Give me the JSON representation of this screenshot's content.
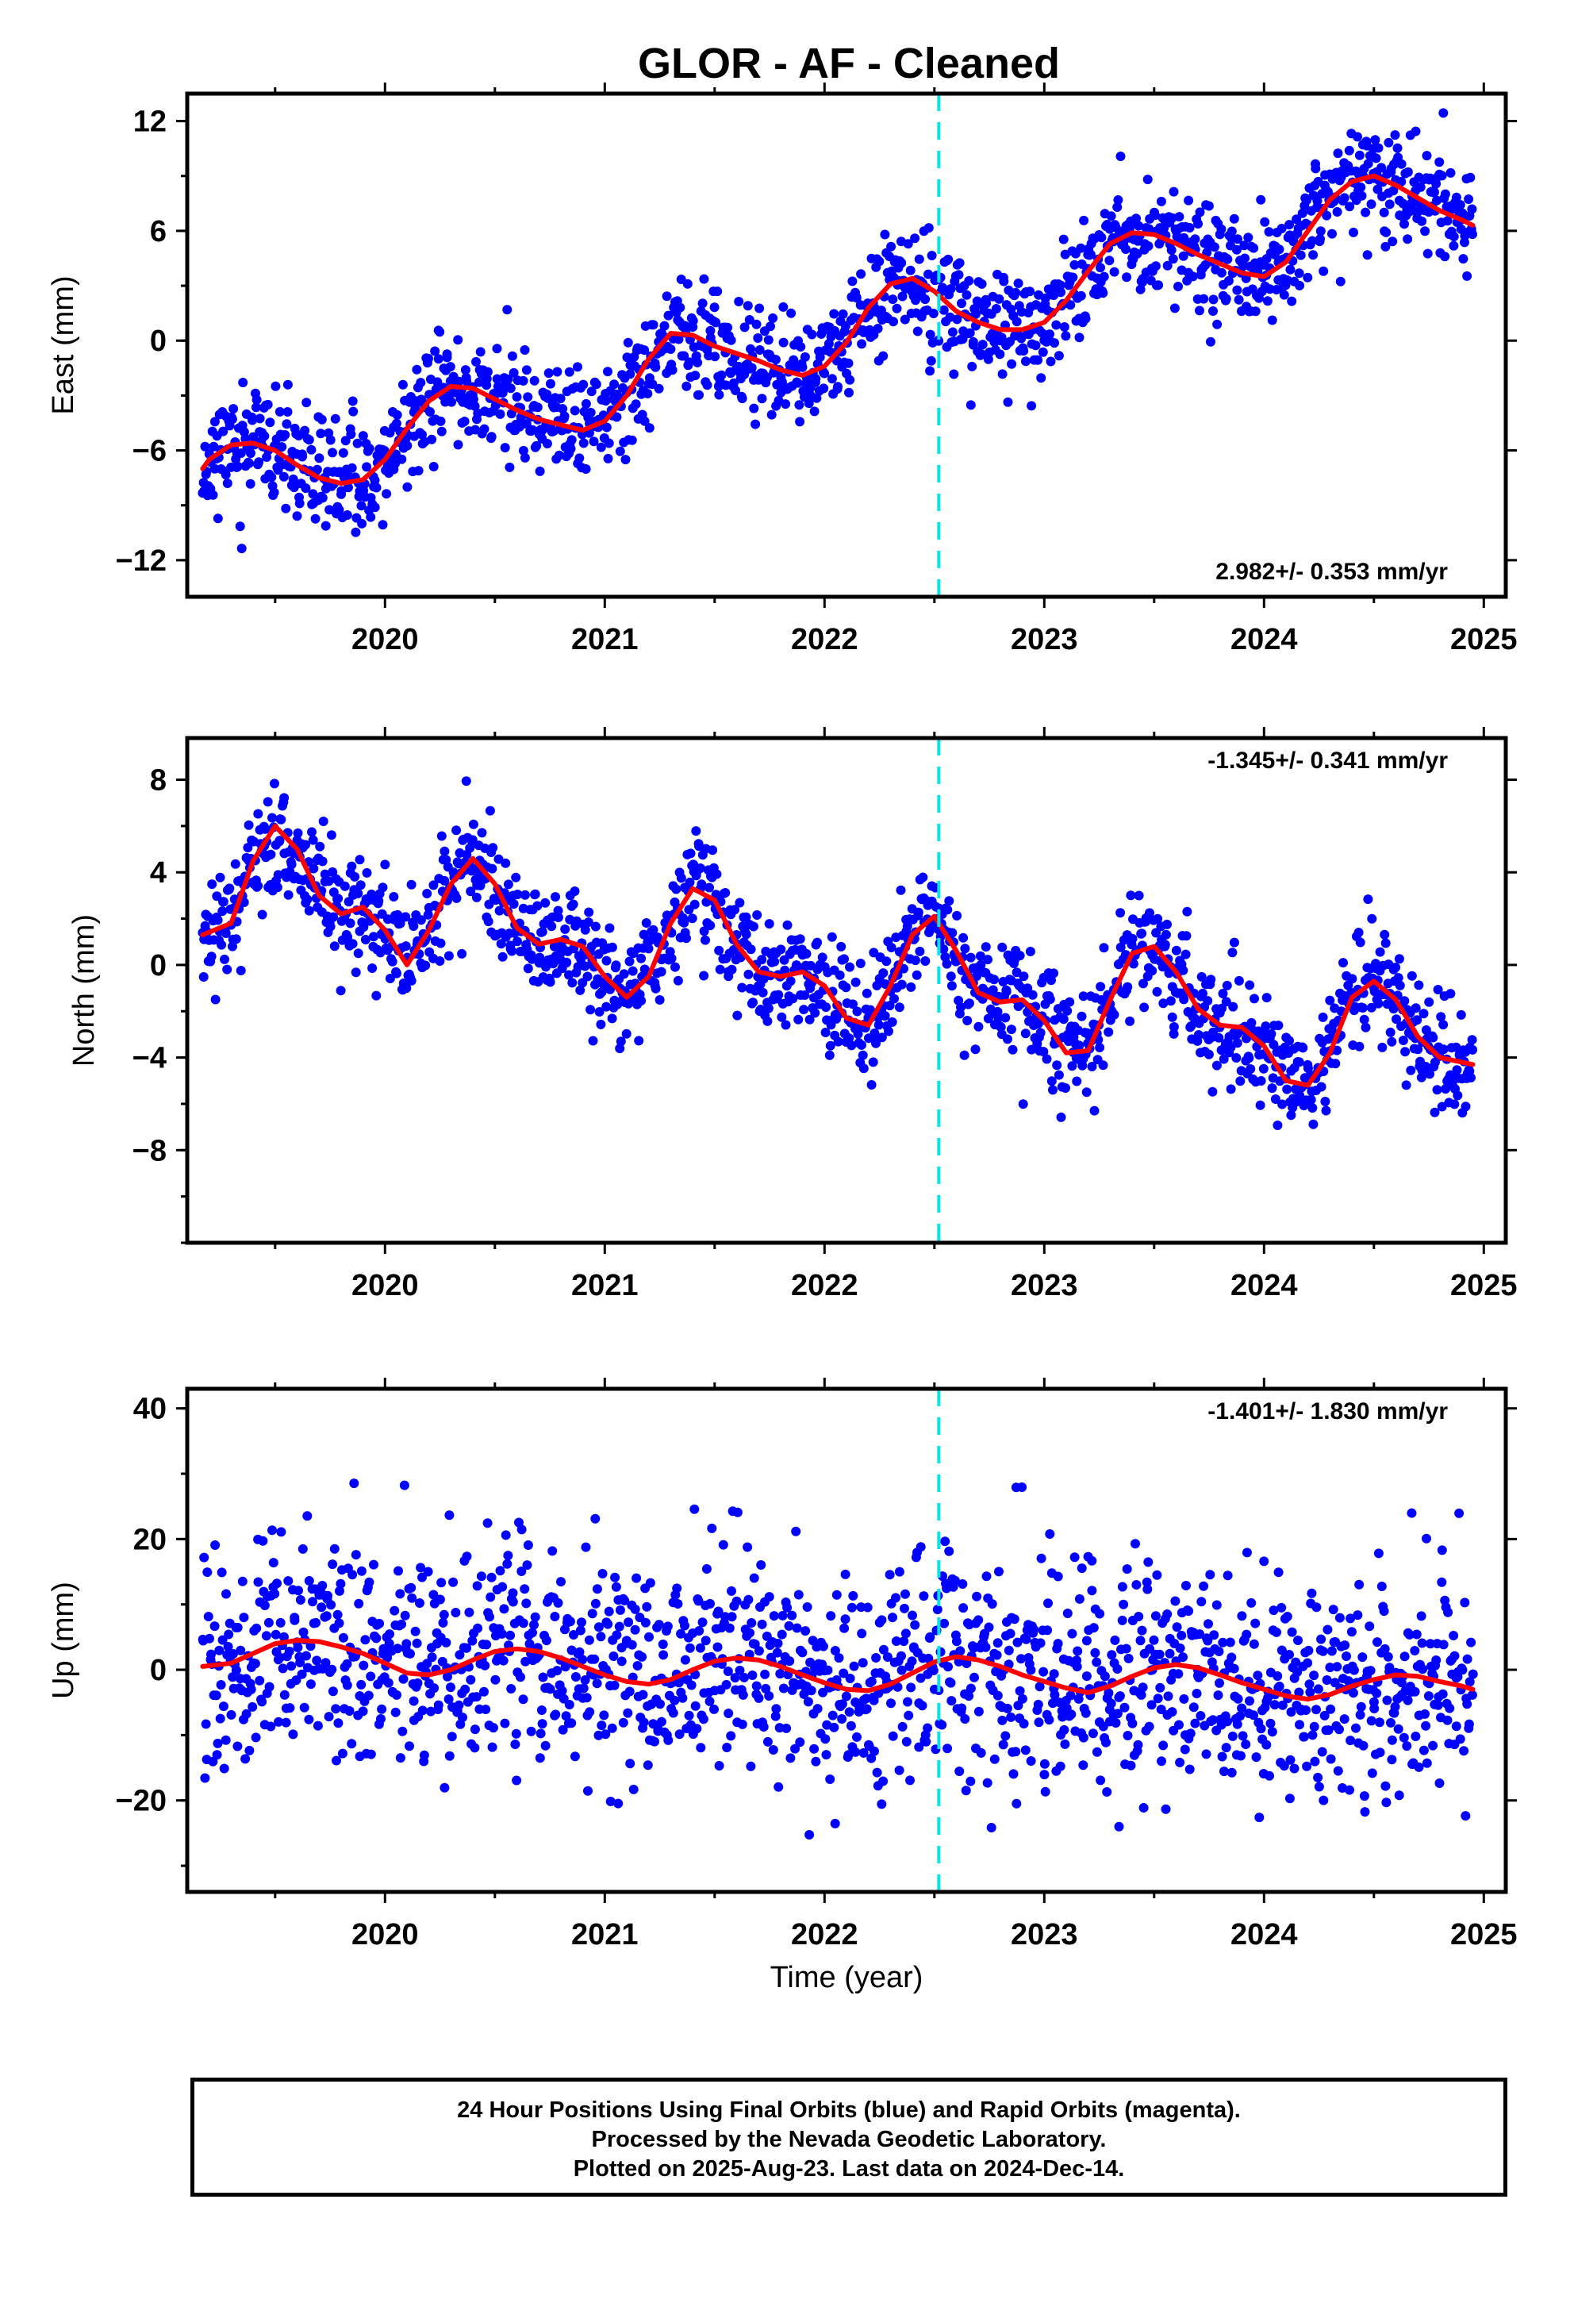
{
  "title": "GLOR  - AF - Cleaned",
  "colors": {
    "final_orbits": "#0000ff",
    "fit_line": "#ff0000",
    "event_line": "#00e5ee"
  },
  "chart_data": [
    {
      "type": "scatter",
      "id": "east",
      "ylabel": "East (mm)",
      "ylim": [
        -14,
        13.5
      ],
      "yticks": [
        12,
        6,
        0,
        -6,
        -12
      ],
      "ytick_labels": [
        "12",
        "6",
        "0",
        "-6",
        "-12"
      ],
      "xlim": [
        2019.1,
        2025.1
      ],
      "xticks": [
        2020,
        2021,
        2022,
        2023,
        2024,
        2025
      ],
      "xtick_labels": [
        "2020",
        "2021",
        "2022",
        "2023",
        "2024",
        "2025"
      ],
      "rate_label": "2.982+/- 0.353 mm/yr",
      "event_line_x": 2022.52,
      "fit": {
        "x": [
          2019.17,
          2019.2,
          2019.3,
          2019.4,
          2019.5,
          2019.6,
          2019.7,
          2019.8,
          2019.9,
          2020.0,
          2020.1,
          2020.2,
          2020.3,
          2020.4,
          2020.5,
          2020.6,
          2020.7,
          2020.8,
          2020.9,
          2021.0,
          2021.1,
          2021.2,
          2021.3,
          2021.4,
          2021.5,
          2021.6,
          2021.7,
          2021.8,
          2021.9,
          2022.0,
          2022.1,
          2022.2,
          2022.3,
          2022.4,
          2022.5,
          2022.6,
          2022.7,
          2022.8,
          2022.9,
          2023.0,
          2023.1,
          2023.2,
          2023.3,
          2023.4,
          2023.5,
          2023.6,
          2023.7,
          2023.8,
          2023.9,
          2024.0,
          2024.1,
          2024.2,
          2024.3,
          2024.4,
          2024.5,
          2024.6,
          2024.7,
          2024.8,
          2024.9,
          2024.95
        ],
        "y": [
          -7.0,
          -6.5,
          -5.7,
          -5.6,
          -6.0,
          -6.8,
          -7.5,
          -7.8,
          -7.6,
          -6.5,
          -4.8,
          -3.3,
          -2.5,
          -2.6,
          -3.2,
          -3.8,
          -4.3,
          -4.6,
          -4.9,
          -4.4,
          -3.0,
          -1.0,
          0.4,
          0.3,
          -0.3,
          -0.7,
          -1.1,
          -1.6,
          -1.9,
          -1.4,
          -0.1,
          1.8,
          3.1,
          3.4,
          2.7,
          1.6,
          1.0,
          0.6,
          0.6,
          1.0,
          2.2,
          3.8,
          5.3,
          5.9,
          5.8,
          5.3,
          4.7,
          4.2,
          3.7,
          3.5,
          4.3,
          6.0,
          7.7,
          8.7,
          9.0,
          8.5,
          7.8,
          7.1,
          6.6,
          6.3
        ]
      }
    },
    {
      "type": "scatter",
      "id": "north",
      "ylabel": "North (mm)",
      "ylim": [
        -12,
        9.8
      ],
      "yticks": [
        8,
        4,
        0,
        -4,
        -8
      ],
      "ytick_labels": [
        "8",
        "4",
        "0",
        "-4",
        "-8"
      ],
      "xlim": [
        2019.1,
        2025.1
      ],
      "xticks": [
        2020,
        2021,
        2022,
        2023,
        2024,
        2025
      ],
      "xtick_labels": [
        "2020",
        "2021",
        "2022",
        "2023",
        "2024",
        "2025"
      ],
      "rate_label": "-1.345+/- 0.341 mm/yr",
      "event_line_x": 2022.52,
      "fit": {
        "x": [
          2019.17,
          2019.3,
          2019.4,
          2019.5,
          2019.6,
          2019.7,
          2019.8,
          2019.9,
          2020.0,
          2020.1,
          2020.2,
          2020.3,
          2020.4,
          2020.5,
          2020.6,
          2020.7,
          2020.8,
          2020.9,
          2021.0,
          2021.1,
          2021.2,
          2021.3,
          2021.4,
          2021.5,
          2021.6,
          2021.7,
          2021.8,
          2021.9,
          2022.0,
          2022.1,
          2022.2,
          2022.3,
          2022.4,
          2022.5,
          2022.6,
          2022.7,
          2022.8,
          2022.9,
          2023.0,
          2023.1,
          2023.2,
          2023.3,
          2023.4,
          2023.5,
          2023.6,
          2023.7,
          2023.8,
          2023.9,
          2024.0,
          2024.1,
          2024.2,
          2024.3,
          2024.4,
          2024.5,
          2024.6,
          2024.7,
          2024.8,
          2024.9,
          2024.95
        ],
        "y": [
          1.3,
          1.8,
          4.5,
          6.0,
          5.0,
          3.0,
          2.2,
          2.5,
          1.5,
          0.0,
          1.5,
          3.5,
          4.6,
          3.5,
          1.6,
          0.9,
          1.1,
          0.8,
          -0.5,
          -1.4,
          -0.5,
          1.8,
          3.3,
          2.8,
          0.9,
          -0.3,
          -0.5,
          -0.3,
          -0.9,
          -2.3,
          -2.6,
          -0.9,
          1.3,
          2.1,
          0.6,
          -1.2,
          -1.6,
          -1.5,
          -2.4,
          -3.8,
          -3.7,
          -1.5,
          0.5,
          0.8,
          -0.3,
          -1.9,
          -2.6,
          -2.7,
          -3.5,
          -5.0,
          -5.2,
          -3.8,
          -1.4,
          -0.7,
          -1.5,
          -3.1,
          -4.0,
          -4.2,
          -4.3
        ]
      }
    },
    {
      "type": "scatter",
      "id": "up",
      "ylabel": "Up (mm)",
      "xlabel": "Time (year)",
      "ylim": [
        -34,
        43
      ],
      "yticks": [
        40,
        20,
        0,
        -20
      ],
      "ytick_labels": [
        "40",
        "20",
        "0",
        "-20"
      ],
      "xlim": [
        2019.1,
        2025.1
      ],
      "xticks": [
        2020,
        2021,
        2022,
        2023,
        2024,
        2025
      ],
      "xtick_labels": [
        "2020",
        "2021",
        "2022",
        "2023",
        "2024",
        "2025"
      ],
      "rate_label": "-1.401+/- 1.830 mm/yr",
      "event_line_x": 2022.52,
      "fit": {
        "x": [
          2019.17,
          2019.3,
          2019.4,
          2019.5,
          2019.6,
          2019.7,
          2019.8,
          2019.9,
          2020.0,
          2020.1,
          2020.2,
          2020.3,
          2020.4,
          2020.5,
          2020.6,
          2020.7,
          2020.8,
          2020.9,
          2021.0,
          2021.1,
          2021.2,
          2021.3,
          2021.4,
          2021.5,
          2021.6,
          2021.7,
          2021.8,
          2021.9,
          2022.0,
          2022.1,
          2022.2,
          2022.3,
          2022.4,
          2022.5,
          2022.6,
          2022.7,
          2022.8,
          2022.9,
          2023.0,
          2023.1,
          2023.2,
          2023.3,
          2023.4,
          2023.5,
          2023.6,
          2023.7,
          2023.8,
          2023.9,
          2024.0,
          2024.1,
          2024.2,
          2024.3,
          2024.4,
          2024.5,
          2024.6,
          2024.7,
          2024.8,
          2024.9,
          2024.95
        ],
        "y": [
          0.5,
          1.0,
          2.5,
          4.0,
          4.5,
          4.3,
          3.5,
          2.5,
          1.0,
          -0.5,
          -0.8,
          0.0,
          1.5,
          2.8,
          3.2,
          2.8,
          1.8,
          0.5,
          -0.8,
          -1.8,
          -2.2,
          -1.5,
          0.0,
          1.3,
          1.8,
          1.5,
          0.5,
          -0.8,
          -2.0,
          -3.0,
          -3.2,
          -2.2,
          -0.5,
          1.2,
          2.0,
          1.5,
          0.5,
          -0.8,
          -1.8,
          -2.8,
          -3.5,
          -2.5,
          -1.0,
          0.3,
          0.8,
          0.3,
          -0.8,
          -2.0,
          -3.0,
          -4.0,
          -4.5,
          -3.8,
          -2.5,
          -1.5,
          -0.8,
          -1.0,
          -1.8,
          -2.5,
          -3.0
        ]
      }
    }
  ],
  "footer": {
    "line1": "24 Hour Positions Using Final Orbits (blue) and Rapid Orbits (magenta).",
    "line2": "Processed by the Nevada Geodetic Laboratory.",
    "line3": "Plotted on 2025-Aug-23. Last data on 2024-Dec-14."
  }
}
